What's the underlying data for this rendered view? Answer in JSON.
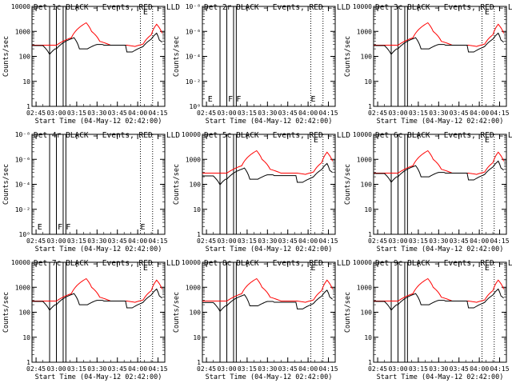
{
  "page": {
    "start_time_label": "Start Time (04-May-12 02:42:00)",
    "ylabel": "Counts/sec",
    "series_colors": {
      "events": "#000000",
      "lld": "#ff0000"
    }
  },
  "chart_data": [
    {
      "type": "line",
      "title": "Det 1c  BLACK = Events, RED = LLD",
      "flat": false,
      "lowFactor": 1.0,
      "xTicks": [
        "02:45",
        "03:00",
        "03:15",
        "03:30",
        "03:45",
        "04:00",
        "04:15"
      ],
      "xRange": [
        "02:42",
        "04:20"
      ],
      "yLabels": [
        "1",
        "10",
        "100",
        "1000",
        "10000"
      ],
      "yRange": [
        1,
        15000
      ],
      "yscale": "log",
      "vlines": [
        "02:55",
        "03:00",
        "03:05",
        "03:07"
      ],
      "dashed": [
        "04:02",
        "04:11"
      ],
      "markers": [
        {
          "t": "04:04",
          "label": "E"
        }
      ]
    },
    {
      "type": "line",
      "title": "Det 2r  BLACK = Events, RED = LLD",
      "flat": true,
      "xTicks": [
        "02:45",
        "03:00",
        "03:15",
        "03:30",
        "03:45",
        "04:00",
        "04:15"
      ],
      "xRange": [
        "02:42",
        "04:20"
      ],
      "yLabels": [
        "10⁰",
        "10⁻²",
        "10⁻⁴",
        "10⁻⁶",
        "10⁻⁸"
      ],
      "yscale": "log",
      "vlines": [
        "02:55",
        "03:00",
        "03:05",
        "03:07"
      ],
      "dashed": [
        "04:02",
        "04:11"
      ],
      "markers": [
        {
          "t": "02:46",
          "label": "E"
        },
        {
          "t": "03:01",
          "label": "F"
        },
        {
          "t": "03:07",
          "label": "F"
        },
        {
          "t": "04:02",
          "label": "E"
        }
      ]
    },
    {
      "type": "line",
      "title": "Det 3c  BLACK = Events, RED = LLD",
      "flat": false,
      "lowFactor": 1.0,
      "xTicks": [
        "02:45",
        "03:00",
        "03:15",
        "03:30",
        "03:45",
        "04:00",
        "04:15"
      ],
      "xRange": [
        "02:42",
        "04:20"
      ],
      "yLabels": [
        "1",
        "10",
        "100",
        "1000",
        "10000"
      ],
      "yRange": [
        1,
        15000
      ],
      "yscale": "log",
      "vlines": [
        "02:55",
        "03:00",
        "03:05",
        "03:07"
      ],
      "dashed": [
        "04:02",
        "04:11"
      ],
      "markers": [
        {
          "t": "04:04",
          "label": "E"
        }
      ]
    },
    {
      "type": "line",
      "title": "Det 4r  BLACK = Events, RED = LLD",
      "flat": true,
      "xTicks": [
        "02:45",
        "03:00",
        "03:15",
        "03:30",
        "03:45",
        "04:00",
        "04:15"
      ],
      "xRange": [
        "02:42",
        "04:20"
      ],
      "yLabels": [
        "10⁰",
        "10⁻²",
        "10⁻⁴",
        "10⁻⁶",
        "10⁻⁸"
      ],
      "yscale": "log",
      "vlines": [
        "02:55",
        "03:00",
        "03:05",
        "03:07"
      ],
      "dashed": [
        "04:02",
        "04:11"
      ],
      "markers": [
        {
          "t": "02:46",
          "label": "E"
        },
        {
          "t": "03:01",
          "label": "F"
        },
        {
          "t": "03:07",
          "label": "F"
        },
        {
          "t": "04:02",
          "label": "E"
        }
      ]
    },
    {
      "type": "line",
      "title": "Det 5c  BLACK = Events, RED = LLD",
      "flat": false,
      "lowFactor": 0.8,
      "xTicks": [
        "02:45",
        "03:00",
        "03:15",
        "03:30",
        "03:45",
        "04:00",
        "04:15"
      ],
      "xRange": [
        "02:42",
        "04:20"
      ],
      "yLabels": [
        "1",
        "10",
        "100",
        "1000",
        "10000"
      ],
      "yRange": [
        1,
        15000
      ],
      "yscale": "log",
      "vlines": [
        "02:55",
        "03:00",
        "03:05",
        "03:07"
      ],
      "dashed": [
        "04:02",
        "04:11"
      ],
      "markers": [
        {
          "t": "04:04",
          "label": "E"
        }
      ]
    },
    {
      "type": "line",
      "title": "Det 6c  BLACK = Events, RED = LLD",
      "flat": false,
      "lowFactor": 1.0,
      "xTicks": [
        "02:45",
        "03:00",
        "03:15",
        "03:30",
        "03:45",
        "04:00",
        "04:15"
      ],
      "xRange": [
        "02:42",
        "04:20"
      ],
      "yLabels": [
        "1",
        "10",
        "100",
        "1000",
        "10000"
      ],
      "yRange": [
        1,
        15000
      ],
      "yscale": "log",
      "vlines": [
        "02:55",
        "03:00",
        "03:05",
        "03:07"
      ],
      "dashed": [
        "04:02",
        "04:11"
      ],
      "markers": [
        {
          "t": "04:04",
          "label": "E"
        }
      ]
    },
    {
      "type": "line",
      "title": "Det 7c  BLACK = Events, RED = LLD",
      "flat": false,
      "lowFactor": 1.0,
      "xTicks": [
        "02:45",
        "03:00",
        "03:15",
        "03:30",
        "03:45",
        "04:00",
        "04:15"
      ],
      "xRange": [
        "02:42",
        "04:20"
      ],
      "yLabels": [
        "1",
        "10",
        "100",
        "1000",
        "10000"
      ],
      "yRange": [
        1,
        15000
      ],
      "yscale": "log",
      "vlines": [
        "02:55",
        "03:00",
        "03:05",
        "03:07"
      ],
      "dashed": [
        "04:02",
        "04:11"
      ],
      "markers": [
        {
          "t": "04:04",
          "label": "E"
        }
      ]
    },
    {
      "type": "line",
      "title": "Det 8c  BLACK = Events, RED = LLD",
      "flat": false,
      "lowFactor": 0.9,
      "xTicks": [
        "02:45",
        "03:00",
        "03:15",
        "03:30",
        "03:45",
        "04:00",
        "04:15"
      ],
      "xRange": [
        "02:42",
        "04:20"
      ],
      "yLabels": [
        "1",
        "10",
        "100",
        "1000",
        "10000"
      ],
      "yRange": [
        1,
        15000
      ],
      "yscale": "log",
      "vlines": [
        "02:55",
        "03:00",
        "03:05",
        "03:07"
      ],
      "dashed": [
        "04:02",
        "04:11"
      ],
      "markers": [
        {
          "t": "04:02",
          "label": "E"
        }
      ]
    },
    {
      "type": "line",
      "title": "Det 9c  BLACK = Events, RED = LLD",
      "flat": false,
      "lowFactor": 1.0,
      "xTicks": [
        "02:45",
        "03:00",
        "03:15",
        "03:30",
        "03:45",
        "04:00",
        "04:15"
      ],
      "xRange": [
        "02:42",
        "04:20"
      ],
      "yLabels": [
        "1",
        "10",
        "100",
        "1000",
        "10000"
      ],
      "yRange": [
        1,
        15000
      ],
      "yscale": "log",
      "vlines": [
        "02:55",
        "03:00",
        "03:05",
        "03:07"
      ],
      "dashed": [
        "04:02",
        "04:11"
      ],
      "markers": [
        {
          "t": "04:04",
          "label": "E"
        }
      ]
    }
  ]
}
